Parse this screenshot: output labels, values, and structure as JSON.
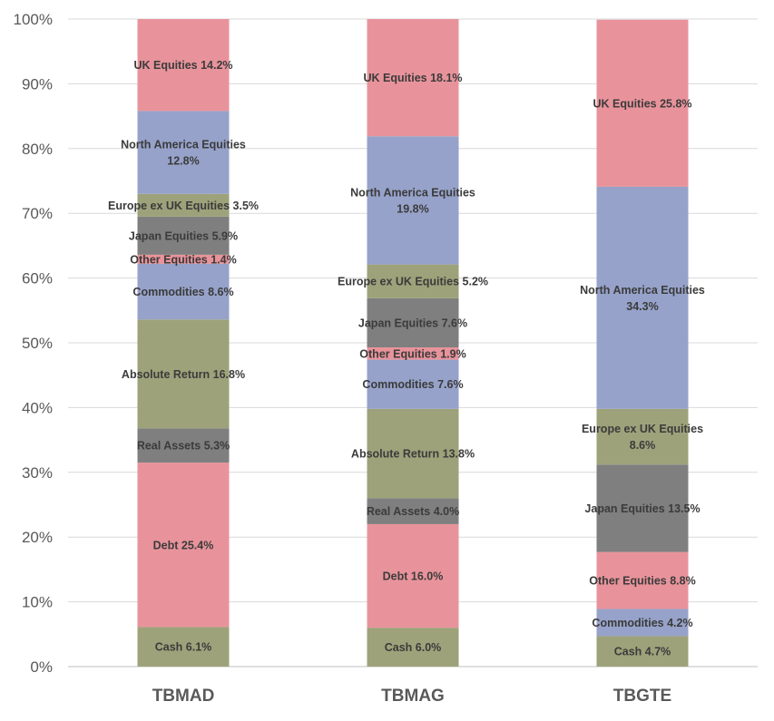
{
  "chart_data": {
    "type": "bar",
    "stacked": true,
    "percent_stacked": true,
    "categories": [
      "TBMAD",
      "TBMAG",
      "TBGTE"
    ],
    "ylim": [
      0,
      100
    ],
    "yticks": [
      "0%",
      "10%",
      "20%",
      "30%",
      "40%",
      "50%",
      "60%",
      "70%",
      "80%",
      "90%",
      "100%"
    ],
    "grid": true,
    "legend": "none",
    "colors": {
      "green": "#9ea27a",
      "pink": "#e8939b",
      "gray": "#7f7f7f",
      "blue": "#96a2c9"
    },
    "bars": [
      {
        "category": "TBMAD",
        "segments": [
          {
            "label": [
              "Cash 6.1%"
            ],
            "value": 6.1,
            "color": "green"
          },
          {
            "label": [
              "Debt 25.4%"
            ],
            "value": 25.4,
            "color": "pink"
          },
          {
            "label": [
              "Real Assets 5.3%"
            ],
            "value": 5.3,
            "color": "gray"
          },
          {
            "label": [
              "Absolute Return 16.8%"
            ],
            "value": 16.8,
            "color": "green"
          },
          {
            "label": [
              "Commodities 8.6%"
            ],
            "value": 8.6,
            "color": "blue"
          },
          {
            "label": [
              "Other Equities 1.4%"
            ],
            "value": 1.4,
            "color": "pink"
          },
          {
            "label": [
              "Japan Equities 5.9%"
            ],
            "value": 5.9,
            "color": "gray"
          },
          {
            "label": [
              "Europe ex UK Equities 3.5%"
            ],
            "value": 3.5,
            "color": "green"
          },
          {
            "label": [
              "North America Equities",
              "12.8%"
            ],
            "value": 12.8,
            "color": "blue"
          },
          {
            "label": [
              "UK Equities 14.2%"
            ],
            "value": 14.2,
            "color": "pink"
          }
        ]
      },
      {
        "category": "TBMAG",
        "segments": [
          {
            "label": [
              "Cash 6.0%"
            ],
            "value": 6.0,
            "color": "green"
          },
          {
            "label": [
              "Debt 16.0%"
            ],
            "value": 16.0,
            "color": "pink"
          },
          {
            "label": [
              "Real Assets 4.0%"
            ],
            "value": 4.0,
            "color": "gray"
          },
          {
            "label": [
              "Absolute Return 13.8%"
            ],
            "value": 13.8,
            "color": "green"
          },
          {
            "label": [
              "Commodities 7.6%"
            ],
            "value": 7.6,
            "color": "blue"
          },
          {
            "label": [
              "Other Equities 1.9%"
            ],
            "value": 1.9,
            "color": "pink"
          },
          {
            "label": [
              "Japan Equities 7.6%"
            ],
            "value": 7.6,
            "color": "gray"
          },
          {
            "label": [
              "Europe ex UK Equities 5.2%"
            ],
            "value": 5.2,
            "color": "green"
          },
          {
            "label": [
              "North America Equities",
              "19.8%"
            ],
            "value": 19.8,
            "color": "blue"
          },
          {
            "label": [
              "UK Equities 18.1%"
            ],
            "value": 18.1,
            "color": "pink"
          }
        ]
      },
      {
        "category": "TBGTE",
        "segments": [
          {
            "label": [
              "Cash 4.7%"
            ],
            "value": 4.7,
            "color": "green"
          },
          {
            "label": [
              "Commodities 4.2%"
            ],
            "value": 4.2,
            "color": "blue"
          },
          {
            "label": [
              "Other Equities 8.8%"
            ],
            "value": 8.8,
            "color": "pink"
          },
          {
            "label": [
              "Japan Equities 13.5%"
            ],
            "value": 13.5,
            "color": "gray"
          },
          {
            "label": [
              "Europe ex UK Equities",
              "8.6%"
            ],
            "value": 8.6,
            "color": "green"
          },
          {
            "label": [
              "North America Equities",
              "34.3%"
            ],
            "value": 34.3,
            "color": "blue"
          },
          {
            "label": [
              "UK Equities 25.8%"
            ],
            "value": 25.8,
            "color": "pink"
          }
        ]
      }
    ]
  }
}
